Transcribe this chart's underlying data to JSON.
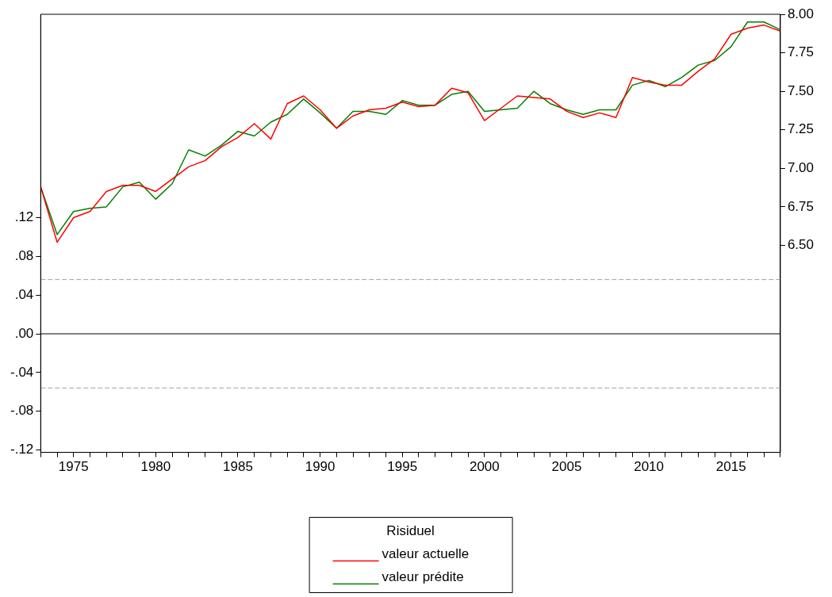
{
  "chart_data": {
    "type": "line",
    "legend_title": "Risiduel",
    "legend": "bottom",
    "grid": false,
    "marker": "none",
    "line_style": "solid",
    "x": [
      1973,
      1974,
      1975,
      1976,
      1977,
      1978,
      1979,
      1980,
      1981,
      1982,
      1983,
      1984,
      1985,
      1986,
      1987,
      1988,
      1989,
      1990,
      1991,
      1992,
      1993,
      1994,
      1995,
      1996,
      1997,
      1998,
      1999,
      2000,
      2001,
      2002,
      2003,
      2004,
      2005,
      2006,
      2007,
      2008,
      2009,
      2010,
      2011,
      2012,
      2013,
      2014,
      2015,
      2016,
      2017,
      2018
    ],
    "xlim": [
      1973,
      2018
    ],
    "xticks": [
      {
        "value": 1973,
        "label": null
      },
      {
        "value": 1974,
        "label": null
      },
      1975,
      {
        "value": 1976,
        "label": null
      },
      {
        "value": 1977,
        "label": null
      },
      {
        "value": 1978,
        "label": null
      },
      {
        "value": 1979,
        "label": null
      },
      1980,
      {
        "value": 1981,
        "label": null
      },
      {
        "value": 1982,
        "label": null
      },
      {
        "value": 1983,
        "label": null
      },
      {
        "value": 1984,
        "label": null
      },
      1985,
      {
        "value": 1986,
        "label": null
      },
      {
        "value": 1987,
        "label": null
      },
      {
        "value": 1988,
        "label": null
      },
      {
        "value": 1989,
        "label": null
      },
      1990,
      {
        "value": 1991,
        "label": null
      },
      {
        "value": 1992,
        "label": null
      },
      {
        "value": 1993,
        "label": null
      },
      {
        "value": 1994,
        "label": null
      },
      1995,
      {
        "value": 1996,
        "label": null
      },
      {
        "value": 1997,
        "label": null
      },
      {
        "value": 1998,
        "label": null
      },
      {
        "value": 1999,
        "label": null
      },
      2000,
      {
        "value": 2001,
        "label": null
      },
      {
        "value": 2002,
        "label": null
      },
      {
        "value": 2003,
        "label": null
      },
      {
        "value": 2004,
        "label": null
      },
      2005,
      {
        "value": 2006,
        "label": null
      },
      {
        "value": 2007,
        "label": null
      },
      {
        "value": 2008,
        "label": null
      },
      {
        "value": 2009,
        "label": null
      },
      2010,
      {
        "value": 2011,
        "label": null
      },
      {
        "value": 2012,
        "label": null
      },
      {
        "value": 2013,
        "label": null
      },
      {
        "value": 2014,
        "label": null
      },
      2015,
      {
        "value": 2016,
        "label": null
      },
      {
        "value": 2017,
        "label": null
      },
      {
        "value": 2018,
        "label": null
      }
    ],
    "ylim": [
      -0.1225,
      0.33
    ],
    "yticks": [
      {
        "value": -0.12,
        "label": "-.12"
      },
      {
        "value": -0.08,
        "label": "-.08"
      },
      {
        "value": -0.04,
        "label": "-.04"
      },
      {
        "value": 0,
        "label": ".00"
      },
      {
        "value": 0.04,
        "label": ".04"
      },
      {
        "value": 0.08,
        "label": ".08"
      },
      {
        "value": 0.12,
        "label": ".12"
      }
    ],
    "y2lim": [
      5.156,
      8.0
    ],
    "y2ticks": [
      {
        "value": 6.5,
        "label": "6.50"
      },
      {
        "value": 6.75,
        "label": "6.75"
      },
      {
        "value": 7.0,
        "label": "7.00"
      },
      {
        "value": 7.25,
        "label": "7.25"
      },
      {
        "value": 7.5,
        "label": "7.50"
      },
      {
        "value": 7.75,
        "label": "7.75"
      },
      {
        "value": 8.0,
        "label": "8.00"
      }
    ],
    "ref_lines": [
      {
        "axis": "y",
        "value": 0.056,
        "color": "#a0a0a0",
        "line_style": "dashed"
      },
      {
        "axis": "y",
        "value": 0,
        "color": "#000000",
        "line_style": "solid"
      },
      {
        "axis": "y",
        "value": -0.056,
        "color": "#a0a0a0",
        "line_style": "dashed"
      }
    ],
    "series": [
      {
        "name": "valeur actuelle",
        "color": "#ff0000",
        "axis": "y2",
        "values": [
          6.88,
          6.52,
          6.68,
          6.72,
          6.85,
          6.89,
          6.89,
          6.85,
          6.93,
          7.01,
          7.05,
          7.14,
          7.2,
          7.29,
          7.19,
          7.42,
          7.47,
          7.38,
          7.26,
          7.34,
          7.38,
          7.39,
          7.43,
          7.4,
          7.41,
          7.52,
          7.49,
          7.31,
          7.39,
          7.47,
          7.46,
          7.45,
          7.37,
          7.33,
          7.36,
          7.33,
          7.59,
          7.56,
          7.54,
          7.54,
          7.63,
          7.71,
          7.87,
          7.91,
          7.93,
          7.89
        ]
      },
      {
        "name": "valeur prédite",
        "color": "#008000",
        "axis": "y2",
        "values": [
          6.88,
          6.57,
          6.72,
          6.74,
          6.75,
          6.88,
          6.91,
          6.8,
          6.9,
          7.12,
          7.08,
          7.15,
          7.24,
          7.21,
          7.3,
          7.35,
          7.45,
          7.36,
          7.26,
          7.37,
          7.37,
          7.35,
          7.44,
          7.41,
          7.41,
          7.48,
          7.5,
          7.37,
          7.38,
          7.39,
          7.5,
          7.42,
          7.38,
          7.35,
          7.38,
          7.38,
          7.54,
          7.57,
          7.53,
          7.59,
          7.67,
          7.7,
          7.79,
          7.95,
          7.95,
          7.9
        ]
      }
    ]
  }
}
